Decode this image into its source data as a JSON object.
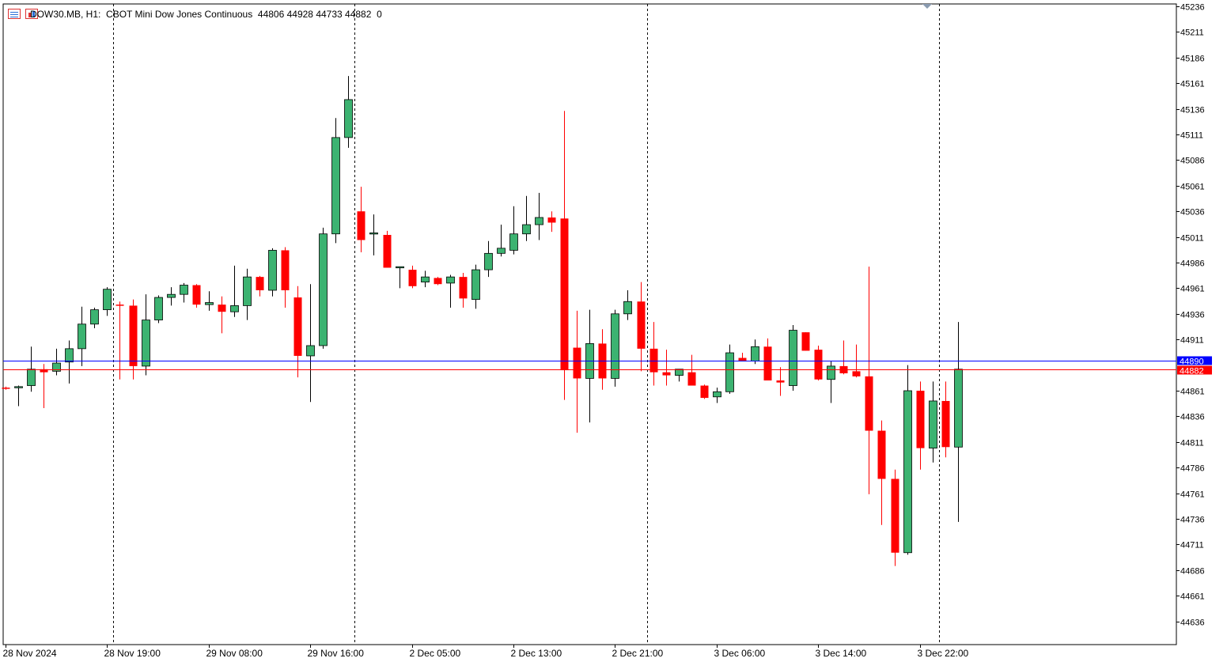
{
  "header": {
    "symbol": "DOW30.MB, H1:",
    "description": "CBOT Mini Dow Jones Continuous",
    "ohlc": "44806 44928 44733 44882",
    "volume": "0"
  },
  "icons": [
    "symbol-list-icon",
    "chart-properties-icon"
  ],
  "colors": {
    "bull": "#3cb371",
    "bear": "#ff0000",
    "bid_line": "#0000ff",
    "ask_line": "#ff0000",
    "axis": "#000000"
  },
  "chart_data": {
    "type": "candlestick",
    "y_min": 44611,
    "y_max": 45236,
    "y_ticks": [
      45236,
      45211,
      45186,
      45161,
      45136,
      45111,
      45086,
      45061,
      45036,
      45011,
      44986,
      44961,
      44936,
      44911,
      44861,
      44836,
      44811,
      44786,
      44761,
      44736,
      44711,
      44686,
      44661,
      44636
    ],
    "x_labels": [
      {
        "index": 0,
        "label": "28 Nov 2024"
      },
      {
        "index": 8,
        "label": "28 Nov 19:00"
      },
      {
        "index": 16,
        "label": "29 Nov 08:00"
      },
      {
        "index": 24,
        "label": "29 Nov 16:00"
      },
      {
        "index": 32,
        "label": "2 Dec 05:00"
      },
      {
        "index": 40,
        "label": "2 Dec 13:00"
      },
      {
        "index": 48,
        "label": "2 Dec 21:00"
      },
      {
        "index": 56,
        "label": "3 Dec 06:00"
      },
      {
        "index": 64,
        "label": "3 Dec 14:00"
      },
      {
        "index": 72,
        "label": "3 Dec 22:00"
      }
    ],
    "separators": [
      8.5,
      27.5,
      50.5,
      73.5
    ],
    "bid_level": 44890,
    "ask_level": 44882,
    "bid_label": "44890",
    "ask_label": "44882",
    "candles": [
      {
        "o": 44864,
        "h": 44865,
        "l": 44862,
        "c": 44863
      },
      {
        "o": 44864,
        "h": 44866,
        "l": 44846,
        "c": 44865
      },
      {
        "o": 44866,
        "h": 44904,
        "l": 44860,
        "c": 44882
      },
      {
        "o": 44882,
        "h": 44887,
        "l": 44844,
        "c": 44879
      },
      {
        "o": 44880,
        "h": 44902,
        "l": 44876,
        "c": 44888
      },
      {
        "o": 44889,
        "h": 44910,
        "l": 44868,
        "c": 44902
      },
      {
        "o": 44902,
        "h": 44943,
        "l": 44885,
        "c": 44926
      },
      {
        "o": 44926,
        "h": 44942,
        "l": 44922,
        "c": 44940
      },
      {
        "o": 44940,
        "h": 44962,
        "l": 44934,
        "c": 44960
      },
      {
        "o": 44945,
        "h": 44948,
        "l": 44872,
        "c": 44944
      },
      {
        "o": 44944,
        "h": 44950,
        "l": 44872,
        "c": 44885
      },
      {
        "o": 44885,
        "h": 44955,
        "l": 44876,
        "c": 44930
      },
      {
        "o": 44930,
        "h": 44954,
        "l": 44927,
        "c": 44952
      },
      {
        "o": 44952,
        "h": 44962,
        "l": 44944,
        "c": 44955
      },
      {
        "o": 44955,
        "h": 44966,
        "l": 44947,
        "c": 44964
      },
      {
        "o": 44964,
        "h": 44965,
        "l": 44942,
        "c": 44945
      },
      {
        "o": 44945,
        "h": 44958,
        "l": 44939,
        "c": 44947
      },
      {
        "o": 44945,
        "h": 44953,
        "l": 44917,
        "c": 44938
      },
      {
        "o": 44938,
        "h": 44983,
        "l": 44933,
        "c": 44944
      },
      {
        "o": 44944,
        "h": 44980,
        "l": 44930,
        "c": 44972
      },
      {
        "o": 44972,
        "h": 44973,
        "l": 44953,
        "c": 44959
      },
      {
        "o": 44959,
        "h": 45000,
        "l": 44953,
        "c": 44998
      },
      {
        "o": 44998,
        "h": 45001,
        "l": 44942,
        "c": 44959
      },
      {
        "o": 44952,
        "h": 44963,
        "l": 44874,
        "c": 44895
      },
      {
        "o": 44895,
        "h": 44965,
        "l": 44850,
        "c": 44905
      },
      {
        "o": 44905,
        "h": 45020,
        "l": 44902,
        "c": 45014
      },
      {
        "o": 45014,
        "h": 45127,
        "l": 45005,
        "c": 45108
      },
      {
        "o": 45108,
        "h": 45168,
        "l": 45098,
        "c": 45145
      },
      {
        "o": 45036,
        "h": 45060,
        "l": 44996,
        "c": 45008
      },
      {
        "o": 45014,
        "h": 45033,
        "l": 44993,
        "c": 45015
      },
      {
        "o": 45013,
        "h": 45017,
        "l": 44981,
        "c": 44981
      },
      {
        "o": 44981,
        "h": 44982,
        "l": 44961,
        "c": 44982
      },
      {
        "o": 44979,
        "h": 44983,
        "l": 44961,
        "c": 44963
      },
      {
        "o": 44967,
        "h": 44978,
        "l": 44962,
        "c": 44972
      },
      {
        "o": 44971,
        "h": 44972,
        "l": 44964,
        "c": 44965
      },
      {
        "o": 44966,
        "h": 44974,
        "l": 44942,
        "c": 44972
      },
      {
        "o": 44972,
        "h": 44976,
        "l": 44942,
        "c": 44951
      },
      {
        "o": 44950,
        "h": 44984,
        "l": 44941,
        "c": 44979
      },
      {
        "o": 44979,
        "h": 45007,
        "l": 44972,
        "c": 44995
      },
      {
        "o": 44995,
        "h": 45023,
        "l": 44992,
        "c": 45000
      },
      {
        "o": 44998,
        "h": 45041,
        "l": 44994,
        "c": 45014
      },
      {
        "o": 45014,
        "h": 45051,
        "l": 45007,
        "c": 45023
      },
      {
        "o": 45023,
        "h": 45054,
        "l": 45008,
        "c": 45030
      },
      {
        "o": 45030,
        "h": 45036,
        "l": 45016,
        "c": 45025
      },
      {
        "o": 45029,
        "h": 45134,
        "l": 44852,
        "c": 44881
      },
      {
        "o": 44903,
        "h": 44939,
        "l": 44820,
        "c": 44873
      },
      {
        "o": 44873,
        "h": 44940,
        "l": 44830,
        "c": 44907
      },
      {
        "o": 44907,
        "h": 44921,
        "l": 44862,
        "c": 44873
      },
      {
        "o": 44873,
        "h": 44940,
        "l": 44865,
        "c": 44936
      },
      {
        "o": 44936,
        "h": 44959,
        "l": 44930,
        "c": 44948
      },
      {
        "o": 44948,
        "h": 44967,
        "l": 44880,
        "c": 44902
      },
      {
        "o": 44902,
        "h": 44928,
        "l": 44866,
        "c": 44879
      },
      {
        "o": 44879,
        "h": 44901,
        "l": 44866,
        "c": 44876
      },
      {
        "o": 44876,
        "h": 44882,
        "l": 44870,
        "c": 44882
      },
      {
        "o": 44879,
        "h": 44896,
        "l": 44867,
        "c": 44866
      },
      {
        "o": 44866,
        "h": 44867,
        "l": 44853,
        "c": 44854
      },
      {
        "o": 44855,
        "h": 44864,
        "l": 44849,
        "c": 44860
      },
      {
        "o": 44860,
        "h": 44906,
        "l": 44858,
        "c": 44898
      },
      {
        "o": 44893,
        "h": 44898,
        "l": 44892,
        "c": 44890
      },
      {
        "o": 44890,
        "h": 44911,
        "l": 44887,
        "c": 44904
      },
      {
        "o": 44904,
        "h": 44912,
        "l": 44871,
        "c": 44871
      },
      {
        "o": 44871,
        "h": 44884,
        "l": 44856,
        "c": 44869
      },
      {
        "o": 44866,
        "h": 44925,
        "l": 44861,
        "c": 44920
      },
      {
        "o": 44918,
        "h": 44918,
        "l": 44900,
        "c": 44900
      },
      {
        "o": 44901,
        "h": 44905,
        "l": 44871,
        "c": 44872
      },
      {
        "o": 44872,
        "h": 44890,
        "l": 44849,
        "c": 44885
      },
      {
        "o": 44885,
        "h": 44910,
        "l": 44877,
        "c": 44878
      },
      {
        "o": 44880,
        "h": 44906,
        "l": 44874,
        "c": 44875
      },
      {
        "o": 44875,
        "h": 44982,
        "l": 44760,
        "c": 44822
      },
      {
        "o": 44822,
        "h": 44832,
        "l": 44730,
        "c": 44775
      },
      {
        "o": 44775,
        "h": 44784,
        "l": 44690,
        "c": 44703
      },
      {
        "o": 44703,
        "h": 44886,
        "l": 44701,
        "c": 44861
      },
      {
        "o": 44861,
        "h": 44870,
        "l": 44784,
        "c": 44805
      },
      {
        "o": 44805,
        "h": 44870,
        "l": 44791,
        "c": 44851
      },
      {
        "o": 44851,
        "h": 44870,
        "l": 44796,
        "c": 44806
      },
      {
        "o": 44806,
        "h": 44928,
        "l": 44733,
        "c": 44882
      }
    ]
  }
}
